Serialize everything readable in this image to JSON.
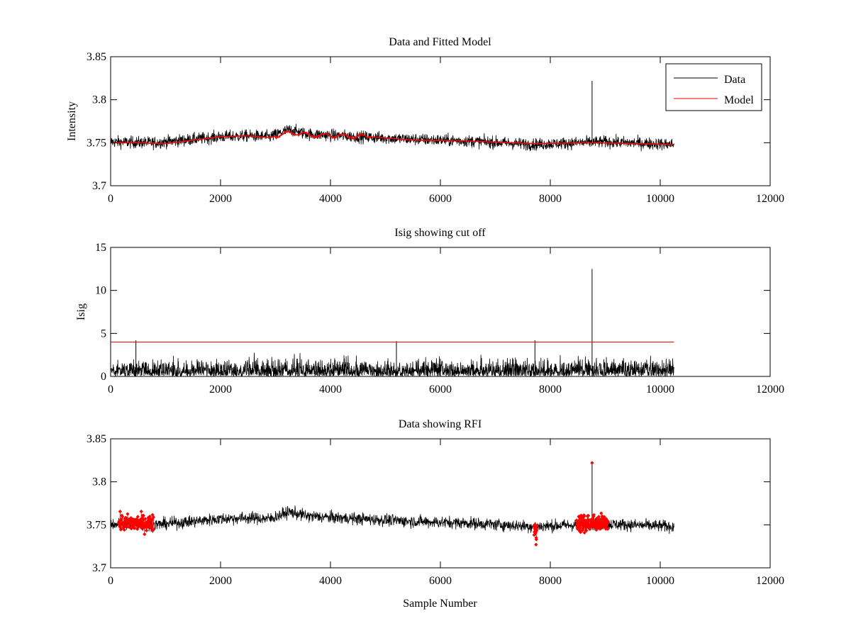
{
  "colors": {
    "data": "#000000",
    "model": "#ff0000",
    "axis": "#000000",
    "background": "#ffffff"
  },
  "chart_data": [
    {
      "type": "line",
      "title": "Data and Fitted Model",
      "xlabel": "",
      "ylabel": "Intensity",
      "xlim": [
        0,
        12000
      ],
      "ylim": [
        3.7,
        3.85
      ],
      "xticks": [
        0,
        2000,
        4000,
        6000,
        8000,
        10000,
        12000
      ],
      "xtick_labels": [
        "0",
        "2000",
        "4000",
        "6000",
        "8000",
        "10000",
        "12000"
      ],
      "yticks": [
        3.7,
        3.75,
        3.8,
        3.85
      ],
      "ytick_labels": [
        "3.7",
        "3.75",
        "3.8",
        "3.85"
      ],
      "legend": {
        "position": "top-right",
        "entries": [
          {
            "label": "Data",
            "color": "#000000"
          },
          {
            "label": "Model",
            "color": "#ff0000"
          }
        ]
      },
      "series": [
        {
          "name": "Data",
          "color": "#000000",
          "kind": "noise",
          "x_range": [
            0,
            10250
          ],
          "noise_amplitude": 0.0075,
          "baseline": [
            [
              0,
              3.751
            ],
            [
              800,
              3.75
            ],
            [
              1500,
              3.754
            ],
            [
              2000,
              3.757
            ],
            [
              2500,
              3.758
            ],
            [
              2900,
              3.757
            ],
            [
              3250,
              3.765
            ],
            [
              3600,
              3.76
            ],
            [
              4500,
              3.757
            ],
            [
              5500,
              3.754
            ],
            [
              6500,
              3.752
            ],
            [
              7700,
              3.748
            ],
            [
              8500,
              3.75
            ],
            [
              9000,
              3.751
            ],
            [
              10250,
              3.748
            ]
          ],
          "spikes": [
            [
              8760,
              3.822
            ]
          ]
        },
        {
          "name": "Model",
          "color": "#ff0000",
          "kind": "smooth",
          "x_range": [
            0,
            10250
          ],
          "baseline": [
            [
              0,
              3.75
            ],
            [
              500,
              3.75
            ],
            [
              1000,
              3.749
            ],
            [
              1500,
              3.753
            ],
            [
              2000,
              3.757
            ],
            [
              2500,
              3.758
            ],
            [
              2900,
              3.756
            ],
            [
              3300,
              3.762
            ],
            [
              3600,
              3.759
            ],
            [
              4700,
              3.757
            ],
            [
              5500,
              3.753
            ],
            [
              6500,
              3.752
            ],
            [
              7700,
              3.749
            ],
            [
              8800,
              3.75
            ],
            [
              9500,
              3.749
            ],
            [
              10250,
              3.748
            ]
          ],
          "wiggle_range": [
            3000,
            4700
          ],
          "wiggle_amplitude": 0.0035
        }
      ]
    },
    {
      "type": "line",
      "title": "Isig showing cut off",
      "xlabel": "",
      "ylabel": "Isig",
      "xlim": [
        0,
        12000
      ],
      "ylim": [
        0,
        15
      ],
      "xticks": [
        0,
        2000,
        4000,
        6000,
        8000,
        10000,
        12000
      ],
      "xtick_labels": [
        "0",
        "2000",
        "4000",
        "6000",
        "8000",
        "10000",
        "12000"
      ],
      "yticks": [
        0,
        5,
        10,
        15
      ],
      "ytick_labels": [
        "0",
        "5",
        "10",
        "15"
      ],
      "series": [
        {
          "name": "Isig",
          "color": "#000000",
          "kind": "abs-noise",
          "x_range": [
            0,
            10250
          ],
          "typical_max": 3.5,
          "spikes": [
            [
              8760,
              12.5
            ],
            [
              460,
              4.2
            ],
            [
              5200,
              4.1
            ],
            [
              7720,
              4.2
            ]
          ]
        },
        {
          "name": "Cut off",
          "color": "#ff0000",
          "kind": "hline",
          "x_range": [
            0,
            10250
          ],
          "value": 4
        }
      ]
    },
    {
      "type": "scatter",
      "title": "Data showing RFI",
      "xlabel": "Sample Number",
      "ylabel": "",
      "xlim": [
        0,
        12000
      ],
      "ylim": [
        3.7,
        3.85
      ],
      "xticks": [
        0,
        2000,
        4000,
        6000,
        8000,
        10000,
        12000
      ],
      "xtick_labels": [
        "0",
        "2000",
        "4000",
        "6000",
        "8000",
        "10000",
        "12000"
      ],
      "yticks": [
        3.7,
        3.75,
        3.8,
        3.85
      ],
      "ytick_labels": [
        "3.7",
        "3.75",
        "3.8",
        "3.85"
      ],
      "series": [
        {
          "name": "Data",
          "color": "#000000",
          "kind": "noise",
          "x_range": [
            0,
            10250
          ],
          "noise_amplitude": 0.0075,
          "baseline": [
            [
              0,
              3.751
            ],
            [
              800,
              3.75
            ],
            [
              1500,
              3.754
            ],
            [
              2000,
              3.757
            ],
            [
              2500,
              3.758
            ],
            [
              2900,
              3.757
            ],
            [
              3250,
              3.765
            ],
            [
              3600,
              3.76
            ],
            [
              4500,
              3.757
            ],
            [
              5500,
              3.754
            ],
            [
              6500,
              3.752
            ],
            [
              7700,
              3.748
            ],
            [
              8500,
              3.75
            ],
            [
              9000,
              3.751
            ],
            [
              10250,
              3.748
            ]
          ],
          "spikes": [
            [
              8760,
              3.822
            ]
          ]
        },
        {
          "name": "RFI",
          "color": "#ff0000",
          "kind": "markers",
          "regions": [
            {
              "x_range": [
                150,
                780
              ],
              "center": 3.752,
              "amplitude": 0.011,
              "count": 140
            },
            {
              "x_range": [
                7700,
                7760
              ],
              "center": 3.745,
              "amplitude": 0.012,
              "count": 12
            },
            {
              "x_range": [
                8480,
                9050
              ],
              "center": 3.752,
              "amplitude": 0.012,
              "count": 130
            }
          ],
          "points": [
            [
              8760,
              3.822
            ],
            [
              7740,
              3.727
            ],
            [
              7745,
              3.733
            ]
          ]
        }
      ]
    }
  ]
}
